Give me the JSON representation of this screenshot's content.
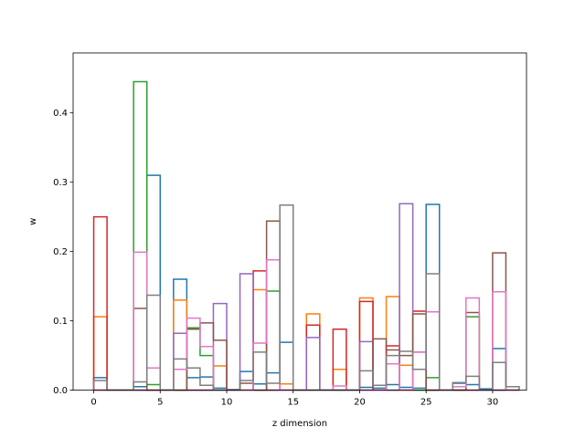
{
  "chart_data": {
    "type": "step",
    "xlabel": "z dimension",
    "ylabel": "w",
    "xlim": [
      -1.55,
      32.55
    ],
    "ylim": [
      0,
      0.4865
    ],
    "xticks": [
      0,
      5,
      10,
      15,
      20,
      25,
      30
    ],
    "yticks": [
      0.0,
      0.1,
      0.2,
      0.3,
      0.4
    ],
    "xtick_labels": [
      "0",
      "5",
      "10",
      "15",
      "20",
      "25",
      "30"
    ],
    "ytick_labels": [
      "0.0",
      "0.1",
      "0.2",
      "0.3",
      "0.4"
    ],
    "grid": false,
    "x": [
      0,
      1,
      2,
      3,
      4,
      5,
      6,
      7,
      8,
      9,
      10,
      11,
      12,
      13,
      14,
      15,
      16,
      17,
      18,
      19,
      20,
      21,
      22,
      23,
      24,
      25,
      26,
      27,
      28,
      29,
      30,
      31
    ],
    "series": [
      {
        "color": "#1f77b4",
        "values": [
          0.018,
          0,
          0,
          0.005,
          0.31,
          0,
          0.16,
          0.018,
          0.019,
          0.003,
          0.001,
          0.027,
          0.009,
          0.025,
          0.069,
          0,
          0,
          0,
          0,
          0,
          0.004,
          0.003,
          0.008,
          0.004,
          0.003,
          0.268,
          0,
          0.01,
          0.008,
          0.002,
          0.06,
          0
        ]
      },
      {
        "color": "#ff7f0e",
        "values": [
          0.106,
          0,
          0,
          0,
          0,
          0,
          0.13,
          0,
          0,
          0.035,
          0,
          0,
          0.145,
          0,
          0.009,
          0,
          0.11,
          0,
          0.03,
          0,
          0.133,
          0,
          0.135,
          0.036,
          0,
          0,
          0,
          0,
          0,
          0,
          0,
          0
        ]
      },
      {
        "color": "#2ca02c",
        "values": [
          0,
          0,
          0,
          0.445,
          0.008,
          0,
          0,
          0.09,
          0.05,
          0,
          0,
          0,
          0,
          0.143,
          0,
          0,
          0,
          0,
          0,
          0,
          0,
          0,
          0,
          0,
          0,
          0.018,
          0,
          0,
          0.106,
          0,
          0,
          0
        ]
      },
      {
        "color": "#d62728",
        "values": [
          0.25,
          0,
          0,
          0,
          0,
          0,
          0,
          0,
          0,
          0,
          0,
          0,
          0.172,
          0,
          0,
          0,
          0.094,
          0,
          0.088,
          0,
          0.128,
          0,
          0.064,
          0,
          0.114,
          0,
          0,
          0,
          0,
          0,
          0,
          0
        ]
      },
      {
        "color": "#9467bd",
        "values": [
          0,
          0,
          0,
          0,
          0,
          0,
          0.082,
          0,
          0,
          0.125,
          0,
          0.168,
          0,
          0,
          0,
          0,
          0.076,
          0,
          0,
          0,
          0.07,
          0,
          0,
          0.269,
          0.055,
          0,
          0,
          0,
          0,
          0,
          0,
          0
        ]
      },
      {
        "color": "#8c564b",
        "values": [
          0,
          0,
          0,
          0.118,
          0,
          0,
          0,
          0.088,
          0.097,
          0.072,
          0,
          0.01,
          0,
          0.244,
          0,
          0,
          0,
          0,
          0,
          0,
          0,
          0.074,
          0.058,
          0.05,
          0.11,
          0,
          0,
          0,
          0.112,
          0,
          0.198,
          0
        ]
      },
      {
        "color": "#e377c2",
        "values": [
          0,
          0,
          0,
          0.199,
          0.032,
          0,
          0.03,
          0.104,
          0.063,
          0,
          0,
          0,
          0.068,
          0.188,
          0,
          0,
          0,
          0,
          0.006,
          0,
          0,
          0,
          0.038,
          0,
          0.055,
          0.113,
          0,
          0.005,
          0.133,
          0,
          0.142,
          0
        ]
      },
      {
        "color": "#7f7f7f",
        "values": [
          0.014,
          0,
          0,
          0.012,
          0.137,
          0,
          0.045,
          0.032,
          0.007,
          0,
          0,
          0.014,
          0.055,
          0.01,
          0.267,
          0,
          0,
          0,
          0,
          0,
          0.028,
          0.007,
          0.05,
          0.056,
          0.03,
          0.168,
          0,
          0.011,
          0.02,
          0,
          0.04,
          0.005
        ]
      }
    ]
  }
}
